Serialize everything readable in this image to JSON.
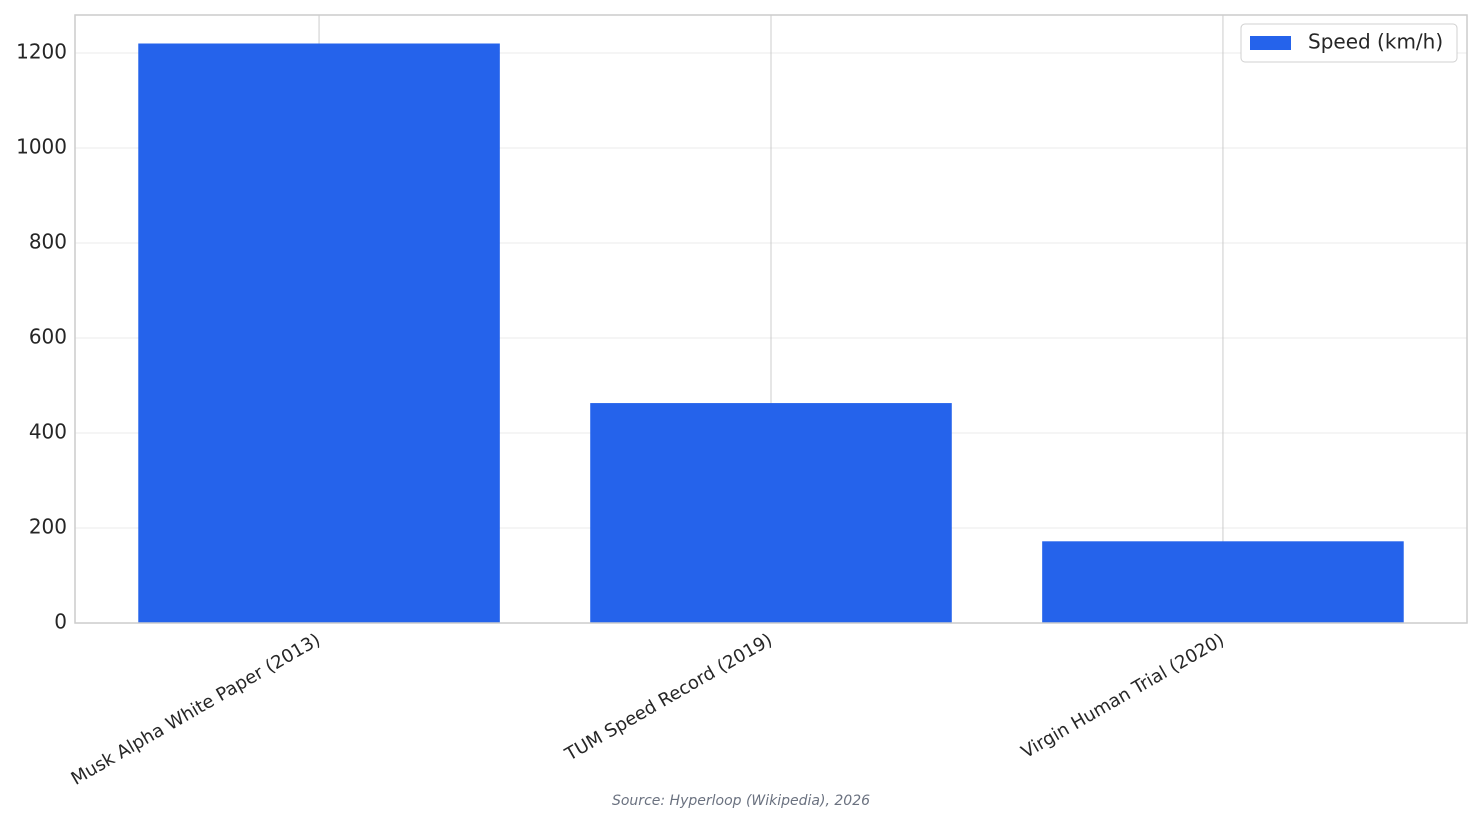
{
  "chart_data": {
    "type": "bar",
    "categories": [
      "Musk Alpha White Paper (2013)",
      "TUM Speed Record (2019)",
      "Virgin Human Trial (2020)"
    ],
    "series": [
      {
        "name": "Speed (km/h)",
        "color": "#2563eb",
        "values": [
          1220,
          463,
          172
        ]
      }
    ],
    "ylim": [
      0,
      1280
    ],
    "yticks": [
      0,
      200,
      400,
      600,
      800,
      1000,
      1200
    ],
    "grid": true,
    "legend": "upper right",
    "source": "Source: Hyperloop (Wikipedia), 2026"
  }
}
